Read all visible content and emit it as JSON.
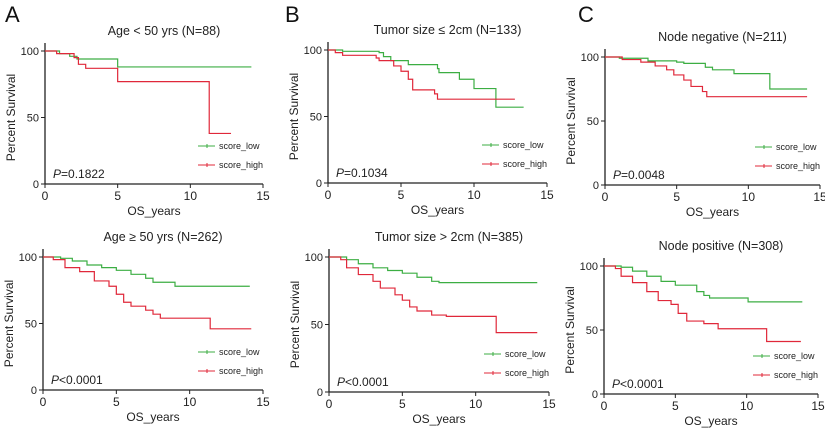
{
  "colors": {
    "score_low": "#3cae43",
    "score_high": "#e0283a"
  },
  "chart_data": [
    {
      "panel": "A",
      "type": "line",
      "step": true,
      "title": "Age < 50 yrs (N=88)",
      "xlabel": "OS_years",
      "ylabel": "Percent Survival",
      "xlim": [
        0,
        15
      ],
      "ylim": [
        0,
        100
      ],
      "xticks": [
        "0",
        "5",
        "10",
        "15"
      ],
      "yticks": [
        "0",
        "50",
        "100"
      ],
      "pvalue_prefix": "P",
      "pvalue": "=0.1822",
      "legend": "bottom-right",
      "series": [
        {
          "name": "score_low",
          "points": [
            [
              0,
              100
            ],
            [
              1,
              98
            ],
            [
              1.7,
              96
            ],
            [
              2.2,
              94
            ],
            [
              5,
              88
            ],
            [
              14.2,
              88
            ]
          ]
        },
        {
          "name": "score_high",
          "points": [
            [
              0,
              100
            ],
            [
              0.8,
              98
            ],
            [
              2,
              95
            ],
            [
              2.3,
              90
            ],
            [
              2.8,
              87
            ],
            [
              5,
              77
            ],
            [
              11.3,
              77
            ],
            [
              11.3,
              38
            ],
            [
              12.8,
              38
            ]
          ]
        }
      ]
    },
    {
      "panel": "B",
      "type": "line",
      "step": true,
      "title": "Tumor size ≤ 2cm (N=133)",
      "xlabel": "OS_years",
      "ylabel": "Percent Survival",
      "xlim": [
        0,
        15
      ],
      "ylim": [
        0,
        100
      ],
      "xticks": [
        "0",
        "5",
        "10",
        "15"
      ],
      "yticks": [
        "0",
        "50",
        "100"
      ],
      "pvalue_prefix": "P",
      "pvalue": "=0.1034",
      "legend": "bottom-right",
      "series": [
        {
          "name": "score_low",
          "points": [
            [
              0,
              100
            ],
            [
              1,
              99
            ],
            [
              3.5,
              98
            ],
            [
              3.8,
              95
            ],
            [
              4.3,
              92
            ],
            [
              5.5,
              89
            ],
            [
              7.5,
              86
            ],
            [
              7.6,
              83
            ],
            [
              9,
              78
            ],
            [
              10,
              71
            ],
            [
              11.5,
              71
            ],
            [
              11.5,
              57
            ],
            [
              13.4,
              57
            ]
          ]
        },
        {
          "name": "score_high",
          "points": [
            [
              0,
              100
            ],
            [
              0.5,
              98
            ],
            [
              1,
              96
            ],
            [
              3.3,
              94
            ],
            [
              3.5,
              92
            ],
            [
              4.5,
              88
            ],
            [
              5,
              84
            ],
            [
              5.5,
              78
            ],
            [
              5.8,
              70
            ],
            [
              7.3,
              67
            ],
            [
              7.5,
              63
            ],
            [
              12.8,
              63
            ]
          ]
        }
      ]
    },
    {
      "panel": "C",
      "type": "line",
      "step": true,
      "title": "Node negative (N=211)",
      "xlabel": "OS_years",
      "ylabel": "Percent Survival",
      "xlim": [
        0,
        15
      ],
      "ylim": [
        0,
        100
      ],
      "xticks": [
        "0",
        "5",
        "10",
        "15"
      ],
      "yticks": [
        "0",
        "50",
        "100"
      ],
      "pvalue_prefix": "P",
      "pvalue": "=0.0048",
      "legend": "bottom-right",
      "series": [
        {
          "name": "score_low",
          "points": [
            [
              0,
              100
            ],
            [
              1,
              99
            ],
            [
              3,
              97
            ],
            [
              5,
              96
            ],
            [
              5.5,
              95
            ],
            [
              7,
              92
            ],
            [
              7.5,
              90
            ],
            [
              9,
              87
            ],
            [
              11.5,
              87
            ],
            [
              11.5,
              75
            ],
            [
              14.1,
              75
            ]
          ]
        },
        {
          "name": "score_high",
          "points": [
            [
              0,
              100
            ],
            [
              1.2,
              98
            ],
            [
              2.5,
              96
            ],
            [
              3.5,
              93
            ],
            [
              4.3,
              90
            ],
            [
              4.8,
              86
            ],
            [
              5.5,
              82
            ],
            [
              6,
              77
            ],
            [
              6.8,
              73
            ],
            [
              7.1,
              69
            ],
            [
              14.1,
              69
            ]
          ]
        }
      ]
    },
    {
      "panel": "",
      "type": "line",
      "step": true,
      "title": "Age ≥ 50 yrs (N=262)",
      "xlabel": "OS_years",
      "ylabel": "Percent Survival",
      "xlim": [
        0,
        15
      ],
      "ylim": [
        0,
        100
      ],
      "xticks": [
        "0",
        "5",
        "10",
        "15"
      ],
      "yticks": [
        "0",
        "50",
        "100"
      ],
      "pvalue_prefix": "P",
      "pvalue": "<0.0001",
      "legend": "bottom-right",
      "series": [
        {
          "name": "score_low",
          "points": [
            [
              0,
              100
            ],
            [
              1.2,
              99
            ],
            [
              2,
              97
            ],
            [
              3,
              94
            ],
            [
              4,
              92
            ],
            [
              5,
              90
            ],
            [
              6,
              87
            ],
            [
              7,
              84
            ],
            [
              7.5,
              81
            ],
            [
              9,
              78
            ],
            [
              14.1,
              78
            ]
          ]
        },
        {
          "name": "score_high",
          "points": [
            [
              0,
              100
            ],
            [
              0.7,
              98
            ],
            [
              1.5,
              92
            ],
            [
              2.5,
              89
            ],
            [
              3.5,
              82
            ],
            [
              4.5,
              78
            ],
            [
              5,
              72
            ],
            [
              5.5,
              66
            ],
            [
              6,
              63
            ],
            [
              7,
              60
            ],
            [
              7.5,
              57
            ],
            [
              8,
              54
            ],
            [
              11.4,
              54
            ],
            [
              11.4,
              46
            ],
            [
              14.2,
              46
            ]
          ]
        }
      ]
    },
    {
      "panel": "",
      "type": "line",
      "step": true,
      "title": "Tumor size > 2cm (N=385)",
      "xlabel": "OS_years",
      "ylabel": "Percent Survival",
      "xlim": [
        0,
        15
      ],
      "ylim": [
        0,
        100
      ],
      "xticks": [
        "0",
        "5",
        "10",
        "15"
      ],
      "yticks": [
        "0",
        "50",
        "100"
      ],
      "pvalue_prefix": "P",
      "pvalue": "<0.0001",
      "legend": "bottom-right",
      "series": [
        {
          "name": "score_low",
          "points": [
            [
              0,
              100
            ],
            [
              1.2,
              98
            ],
            [
              2,
              95
            ],
            [
              3,
              92
            ],
            [
              4,
              90
            ],
            [
              5,
              88
            ],
            [
              6,
              85
            ],
            [
              7,
              82
            ],
            [
              7.5,
              81
            ],
            [
              14.2,
              81
            ]
          ]
        },
        {
          "name": "score_high",
          "points": [
            [
              0,
              100
            ],
            [
              0.8,
              98
            ],
            [
              1.2,
              92
            ],
            [
              2,
              87
            ],
            [
              3,
              82
            ],
            [
              3.5,
              77
            ],
            [
              4.5,
              72
            ],
            [
              5,
              68
            ],
            [
              5.5,
              63
            ],
            [
              6,
              60
            ],
            [
              7,
              57
            ],
            [
              8,
              56
            ],
            [
              11.3,
              56
            ],
            [
              11.4,
              44
            ],
            [
              14.2,
              44
            ]
          ]
        }
      ]
    },
    {
      "panel": "",
      "type": "line",
      "step": true,
      "title": "Node positive (N=308)",
      "xlabel": "OS_years",
      "ylabel": "Percent Survival",
      "xlim": [
        0,
        15
      ],
      "ylim": [
        0,
        100
      ],
      "xticks": [
        "0",
        "5",
        "10",
        "15"
      ],
      "yticks": [
        "0",
        "50",
        "100"
      ],
      "pvalue_prefix": "P",
      "pvalue": "<0.0001",
      "legend": "bottom-right",
      "series": [
        {
          "name": "score_low",
          "points": [
            [
              0,
              100
            ],
            [
              1.2,
              99
            ],
            [
              2,
              96
            ],
            [
              3,
              92
            ],
            [
              4,
              88
            ],
            [
              5,
              85
            ],
            [
              6.5,
              80
            ],
            [
              7,
              77
            ],
            [
              7.4,
              75
            ],
            [
              10,
              75
            ],
            [
              10.1,
              72
            ],
            [
              13.9,
              72
            ]
          ]
        },
        {
          "name": "score_high",
          "points": [
            [
              0,
              100
            ],
            [
              0.8,
              98
            ],
            [
              1.2,
              92
            ],
            [
              2,
              87
            ],
            [
              3,
              80
            ],
            [
              3.8,
              73
            ],
            [
              4.7,
              70
            ],
            [
              5.2,
              63
            ],
            [
              5.8,
              57
            ],
            [
              7,
              55
            ],
            [
              8,
              51
            ],
            [
              11.3,
              51
            ],
            [
              11.4,
              41
            ],
            [
              13.8,
              41
            ]
          ]
        }
      ]
    }
  ]
}
